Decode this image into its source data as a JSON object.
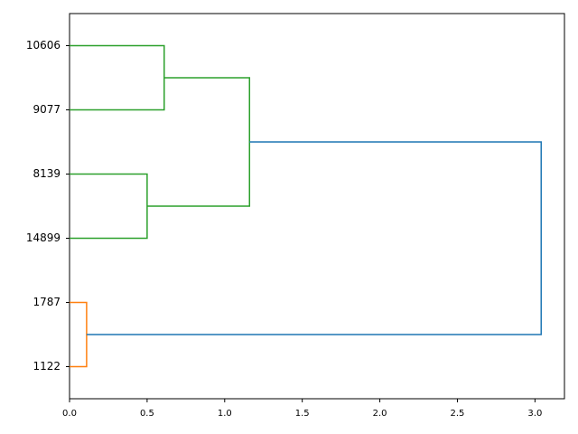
{
  "chart_data": {
    "type": "dendrogram",
    "orientation": "horizontal",
    "xlim": [
      0,
      3.19
    ],
    "xticks": [
      {
        "value": 0,
        "label": "0.0"
      },
      {
        "value": 0.5,
        "label": "0.5"
      },
      {
        "value": 1,
        "label": "1.0"
      },
      {
        "value": 1.5,
        "label": "1.5"
      },
      {
        "value": 2,
        "label": "2.0"
      },
      {
        "value": 2.5,
        "label": "2.5"
      },
      {
        "value": 3,
        "label": "3.0"
      }
    ],
    "tree": {
      "height": 3.04,
      "color": "#1f77b4",
      "children": [
        {
          "height": 0.11,
          "color": "#ff7f0e",
          "children": [
            {
              "label": "1122"
            },
            {
              "label": "1787"
            }
          ]
        },
        {
          "height": 1.16,
          "color": "#2ca02c",
          "children": [
            {
              "height": 0.5,
              "color": "#2ca02c",
              "children": [
                {
                  "label": "14899"
                },
                {
                  "label": "8139"
                }
              ]
            },
            {
              "height": 0.61,
              "color": "#2ca02c",
              "children": [
                {
                  "label": "9077"
                },
                {
                  "label": "10606"
                }
              ]
            }
          ]
        }
      ]
    }
  }
}
